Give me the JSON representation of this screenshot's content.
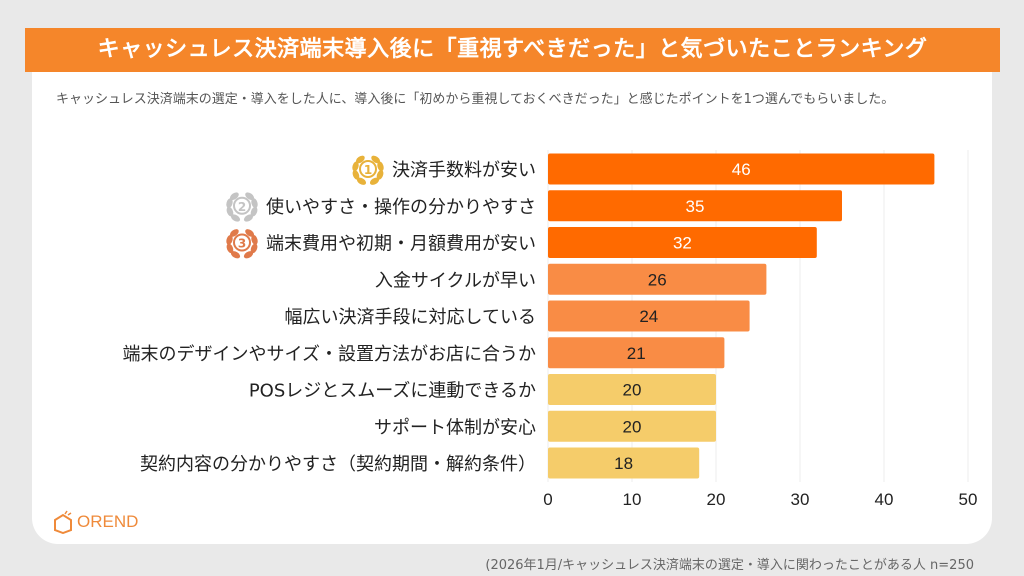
{
  "title": "キャッシュレス決済端末導入後に「重視すべきだった」と気づいたことランキング",
  "subtitle": "キャッシュレス決済端末の選定・導入をした人に、導入後に「初めから重視しておくべきだった」と感じたポイントを1つ選んでもらいました。",
  "logo": "OREND",
  "footnote": "(2026年1月/キャッシュレス決済端末の選定・導入に関わったことがある人  n=250",
  "chart_data": {
    "type": "bar",
    "orientation": "horizontal",
    "categories": [
      "決済手数料が安い",
      "使いやすさ・操作の分かりやすさ",
      "端末費用や初期・月額費用が安い",
      "入金サイクルが早い",
      "幅広い決済手段に対応している",
      "端末のデザインやサイズ・設置方法がお店に合うか",
      "POSレジとスムーズに連動できるか",
      "サポート体制が安心",
      "契約内容の分かりやすさ（契約期間・解約条件）"
    ],
    "values": [
      46,
      35,
      32,
      26,
      24,
      21,
      20,
      20,
      18
    ],
    "ranks": [
      "1",
      "2",
      "3"
    ],
    "rank_colors": [
      "#e8b23a",
      "#c4c4c4",
      "#e07a4a"
    ],
    "bar_colors": [
      "#ff6a00",
      "#ff6a00",
      "#ff6a00",
      "#f98c45",
      "#f98c45",
      "#f98c45",
      "#f5cc6a",
      "#f5cc6a",
      "#f5cc6a"
    ],
    "xlim": [
      0,
      50
    ],
    "xticks": [
      0,
      10,
      20,
      30,
      40,
      50
    ],
    "grid": true
  }
}
